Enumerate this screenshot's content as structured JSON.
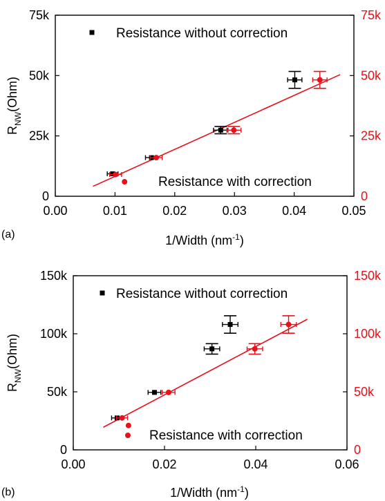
{
  "colors": {
    "black": "#000000",
    "red": "#e8111a"
  },
  "chart_data": [
    {
      "type": "scatter",
      "panel_label": "(a)",
      "xlabel": "1/Width (nm",
      "xlabel_sup": "-1",
      "xlabel_end": ")",
      "ylabel": "R",
      "ylabel_sub": "NW",
      "ylabel_end": "(Ohm)",
      "xlim": [
        0.0,
        0.05
      ],
      "ylim": [
        0,
        75000
      ],
      "x_ticks": [
        0.0,
        0.01,
        0.02,
        0.03,
        0.04,
        0.05
      ],
      "x_tick_labels": [
        "0.00",
        "0.01",
        "0.02",
        "0.03",
        "0.04",
        "0.05"
      ],
      "y_ticks": [
        0,
        25000,
        50000,
        75000
      ],
      "y_tick_labels": [
        "0",
        "25k",
        "50k",
        "75k"
      ],
      "y_right_tick_labels": [
        "0",
        "25k",
        "50k",
        "75k"
      ],
      "series": [
        {
          "name": "Resistance without correction",
          "marker": "square",
          "color": "#000000",
          "points": [
            {
              "x": 0.0096,
              "y": 9300,
              "xerr": 0.0009,
              "yerr": 0
            },
            {
              "x": 0.0161,
              "y": 16000,
              "xerr": 0.001,
              "yerr": 0
            },
            {
              "x": 0.0277,
              "y": 27400,
              "xerr": 0.0012,
              "yerr": 1500
            },
            {
              "x": 0.0401,
              "y": 48200,
              "xerr": 0.0012,
              "yerr": 3500
            }
          ]
        },
        {
          "name": "Resistance with correction",
          "marker": "circle",
          "color": "#e8111a",
          "points": [
            {
              "x": 0.0101,
              "y": 9000,
              "xerr": 0.001,
              "yerr": 0
            },
            {
              "x": 0.0116,
              "y": 6000,
              "xerr": 0,
              "yerr": 0
            },
            {
              "x": 0.0169,
              "y": 16000,
              "xerr": 0.001,
              "yerr": 0
            },
            {
              "x": 0.0299,
              "y": 27400,
              "xerr": 0.0012,
              "yerr": 1500
            },
            {
              "x": 0.0443,
              "y": 48200,
              "xerr": 0.0012,
              "yerr": 3500
            }
          ]
        }
      ],
      "fit_line": {
        "color": "#e8111a",
        "x": [
          0.0063,
          0.0477
        ],
        "y": [
          4100,
          50400
        ]
      }
    },
    {
      "type": "scatter",
      "panel_label": "(b)",
      "xlabel": "1/Width (nm",
      "xlabel_sup": "-1",
      "xlabel_end": ")",
      "ylabel": "R",
      "ylabel_sub": "NW",
      "ylabel_end": "(Ohm)",
      "xlim": [
        0.0,
        0.06
      ],
      "ylim": [
        0,
        150000
      ],
      "x_ticks": [
        0.0,
        0.02,
        0.04,
        0.06
      ],
      "x_tick_labels": [
        "0.00",
        "0.02",
        "0.04",
        "0.06"
      ],
      "y_ticks": [
        0,
        50000,
        100000,
        150000
      ],
      "y_tick_labels": [
        "0",
        "50k",
        "100k",
        "150k"
      ],
      "y_right_tick_labels": [
        "0",
        "50k",
        "100k",
        "150k"
      ],
      "series": [
        {
          "name": "Resistance without correction",
          "marker": "square",
          "color": "#000000",
          "points": [
            {
              "x": 0.0096,
              "y": 27500,
              "xerr": 0.0012,
              "yerr": 0
            },
            {
              "x": 0.0178,
              "y": 49500,
              "xerr": 0.0014,
              "yerr": 0
            },
            {
              "x": 0.0304,
              "y": 87000,
              "xerr": 0.0017,
              "yerr": 4500
            },
            {
              "x": 0.0344,
              "y": 108000,
              "xerr": 0.0017,
              "yerr": 7500
            }
          ]
        },
        {
          "name": "Resistance with correction",
          "marker": "circle",
          "color": "#e8111a",
          "points": [
            {
              "x": 0.0107,
              "y": 27500,
              "xerr": 0.0012,
              "yerr": 0
            },
            {
              "x": 0.0121,
              "y": 21000,
              "xerr": 0,
              "yerr": 0
            },
            {
              "x": 0.0209,
              "y": 49500,
              "xerr": 0.0014,
              "yerr": 0
            },
            {
              "x": 0.0398,
              "y": 87000,
              "xerr": 0.0017,
              "yerr": 4500
            },
            {
              "x": 0.0472,
              "y": 108000,
              "xerr": 0.0017,
              "yerr": 7500
            }
          ]
        }
      ],
      "fit_line": {
        "color": "#e8111a",
        "x": [
          0.0066,
          0.0513
        ],
        "y": [
          19500,
          112500
        ]
      }
    }
  ]
}
